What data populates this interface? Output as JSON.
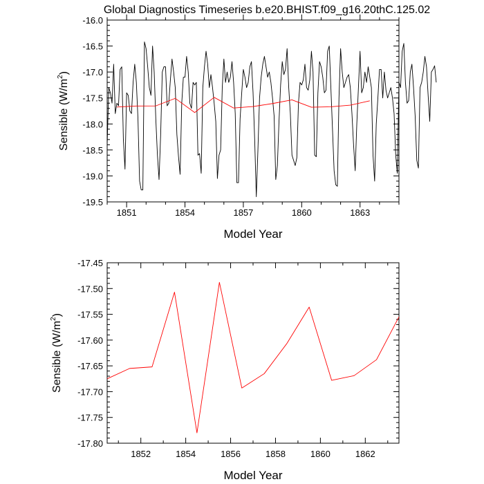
{
  "chart_data": [
    {
      "type": "line",
      "title": "Global Diagnostics Timeseries b.e20.BHIST.f09_g16.20thC.125.02",
      "xlabel": "Model Year",
      "ylabel": "Sensible (W/m²)",
      "xlim": [
        1850.0,
        1865.0
      ],
      "ylim": [
        -19.5,
        -16.0
      ],
      "xticks": [
        1851,
        1854,
        1857,
        1860,
        1863
      ],
      "yticks": [
        -19.5,
        -19.0,
        -18.5,
        -18.0,
        -17.5,
        -17.0,
        -16.5,
        -16.0
      ],
      "series": [
        {
          "color": "#000000",
          "x_start": 1850.0,
          "x_step": 0.083333,
          "values": [
            -18.4,
            -17.3,
            -17.4,
            -17.6,
            -16.85,
            -17.8,
            -17.6,
            -17.65,
            -16.95,
            -16.9,
            -18.3,
            -18.87,
            -17.4,
            -17.45,
            -17.75,
            -17.8,
            -17.2,
            -16.85,
            -17.2,
            -17.9,
            -19.1,
            -19.27,
            -19.27,
            -16.42,
            -16.55,
            -16.9,
            -17.3,
            -17.45,
            -16.5,
            -17.0,
            -17.9,
            -18.6,
            -19.07,
            -18.2,
            -17.0,
            -16.9,
            -16.9,
            -17.65,
            -17.6,
            -17.15,
            -16.75,
            -17.0,
            -17.3,
            -18.2,
            -18.63,
            -18.97,
            -17.6,
            -17.1,
            -17.1,
            -16.7,
            -17.0,
            -17.6,
            -17.7,
            -17.2,
            -17.25,
            -17.2,
            -18.6,
            -18.57,
            -18.95,
            -17.3,
            -16.9,
            -16.6,
            -16.85,
            -17.3,
            -17.05,
            -17.3,
            -17.6,
            -17.95,
            -19.05,
            -18.6,
            -18.5,
            -17.3,
            -16.75,
            -17.2,
            -17.0,
            -17.2,
            -17.1,
            -16.8,
            -17.2,
            -17.8,
            -19.13,
            -19.13,
            -17.9,
            -17.4,
            -16.95,
            -17.1,
            -17.3,
            -17.2,
            -16.9,
            -16.8,
            -17.4,
            -18.3,
            -19.4,
            -18.5,
            -17.5,
            -17.1,
            -16.85,
            -16.7,
            -16.9,
            -17.1,
            -17.0,
            -17.2,
            -17.5,
            -17.85,
            -19.07,
            -18.8,
            -17.95,
            -17.25,
            -16.8,
            -17.05,
            -16.95,
            -16.55,
            -17.3,
            -17.8,
            -18.6,
            -18.7,
            -18.8,
            -18.65,
            -17.6,
            -17.2,
            -17.25,
            -17.15,
            -16.85,
            -17.3,
            -17.35,
            -17.15,
            -16.6,
            -17.0,
            -18.6,
            -18.63,
            -17.4,
            -16.8,
            -16.9,
            -17.1,
            -17.4,
            -17.35,
            -16.6,
            -16.5,
            -17.3,
            -18.1,
            -18.9,
            -19.17,
            -19.2,
            -17.5,
            -16.55,
            -17.0,
            -17.3,
            -17.2,
            -17.1,
            -17.05,
            -17.3,
            -17.8,
            -18.4,
            -18.9,
            -18.0,
            -17.3,
            -16.6,
            -17.4,
            -17.3,
            -17.0,
            -17.2,
            -16.9,
            -17.1,
            -17.3,
            -18.6,
            -19.1,
            -18.0,
            -17.5,
            -16.95,
            -16.95,
            -17.5,
            -17.0,
            -17.35,
            -17.5,
            -17.4,
            -17.3,
            -17.5,
            -17.8,
            -18.6,
            -18.95,
            -17.2,
            -17.3,
            -16.6,
            -16.45,
            -17.2,
            -17.6,
            -17.55,
            -17.0,
            -16.85,
            -17.3,
            -17.85,
            -18.7,
            -18.85,
            -17.3,
            -17.2,
            -17.0,
            -16.7,
            -16.9,
            -17.45,
            -17.95,
            -17.0,
            -16.95,
            -16.88,
            -17.2
          ]
        },
        {
          "color": "#ff0000",
          "x": [
            1850.5,
            1851.5,
            1852.5,
            1853.5,
            1854.5,
            1855.5,
            1856.5,
            1857.5,
            1858.5,
            1859.5,
            1860.5,
            1861.5,
            1862.5,
            1863.5
          ],
          "values": [
            -17.675,
            -17.655,
            -17.652,
            -17.507,
            -17.78,
            -17.488,
            -17.693,
            -17.665,
            -17.607,
            -17.536,
            -17.678,
            -17.669,
            -17.638,
            -17.555
          ]
        }
      ]
    },
    {
      "type": "line",
      "title": "",
      "xlabel": "Model Year",
      "ylabel": "Sensible (W/m²)",
      "xlim": [
        1850.5,
        1863.5
      ],
      "ylim": [
        -17.8,
        -17.45
      ],
      "xticks": [
        1852,
        1854,
        1856,
        1858,
        1860,
        1862
      ],
      "xtick_labels": [
        "1852",
        "1854",
        "1856",
        "1858",
        "1860",
        "1862"
      ],
      "yticks": [
        -17.8,
        -17.75,
        -17.7,
        -17.65,
        -17.6,
        -17.55,
        -17.5,
        -17.45
      ],
      "ytick_labels": [
        "-17.80",
        "-17.75",
        "-17.70",
        "-17.65",
        "-17.60",
        "-17.55",
        "-17.50",
        "-17.45"
      ],
      "series": [
        {
          "color": "#ff0000",
          "x": [
            1850.5,
            1851.5,
            1852.5,
            1853.5,
            1854.5,
            1855.5,
            1856.5,
            1857.5,
            1858.5,
            1859.5,
            1860.5,
            1861.5,
            1862.5,
            1863.5
          ],
          "values": [
            -17.675,
            -17.655,
            -17.652,
            -17.507,
            -17.78,
            -17.488,
            -17.693,
            -17.665,
            -17.607,
            -17.536,
            -17.678,
            -17.669,
            -17.638,
            -17.555
          ]
        }
      ]
    }
  ]
}
